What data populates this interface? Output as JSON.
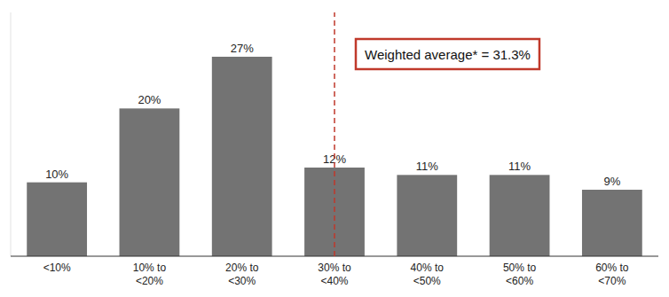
{
  "chart_data": {
    "type": "bar",
    "categories": [
      "<10%",
      "10% to\n<20%",
      "20% to\n<30%",
      "30% to\n<40%",
      "40% to\n<50%",
      "50% to\n<60%",
      "60% to\n<70%"
    ],
    "values": [
      10,
      20,
      27,
      12,
      11,
      11,
      9
    ],
    "value_labels": [
      "10%",
      "20%",
      "27%",
      "12%",
      "11%",
      "11%",
      "9%"
    ],
    "color": "#737373",
    "ylim": [
      0,
      33
    ],
    "data_labels": true,
    "tick_labels": "x",
    "grid": false,
    "annotations": [
      {
        "text": "Weighted average* = 31.3%",
        "x": 3,
        "color": "#C0392B"
      }
    ]
  }
}
